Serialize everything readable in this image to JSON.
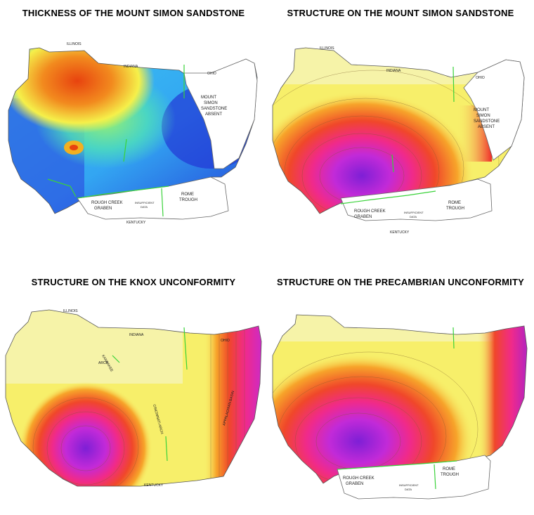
{
  "panels": [
    {
      "title": "THICKNESS OF THE MOUNT SIMON SANDSTONE",
      "labels": {
        "illinois": "ILLINOIS",
        "indiana": "INDIANA",
        "ohio": "OHIO",
        "kentucky": "KENTUCKY",
        "absent_1": "MOUNT",
        "absent_2": "SIMON",
        "absent_3": "SANDSTONE",
        "absent_4": "ABSENT",
        "rough_1": "ROUGH CREEK",
        "rough_2": "GRABEN",
        "rome_1": "ROME",
        "rome_2": "TROUGH",
        "insuff_1": "INSUFFICIENT",
        "insuff_2": "DATA"
      },
      "colors": {
        "high": "#e8430f",
        "mid": "#f5f04a",
        "low": "#2238d6"
      }
    },
    {
      "title": "STRUCTURE ON THE MOUNT SIMON SANDSTONE",
      "labels": {
        "illinois": "ILLINOIS",
        "indiana": "INDIANA",
        "ohio": "OHIO",
        "kentucky": "KENTUCKY",
        "absent_1": "MOUNT",
        "absent_2": "SIMON",
        "absent_3": "SANDSTONE",
        "absent_4": "ABSENT",
        "rough_1": "ROUGH CREEK",
        "rough_2": "GRABEN",
        "rome_1": "ROME",
        "rome_2": "TROUGH",
        "insuff_1": "INSUFFICIENT",
        "insuff_2": "DATA"
      },
      "colors": {
        "shallow": "#f7ef6a",
        "mid": "#f0472a",
        "deep": "#8a1fd8"
      }
    },
    {
      "title": "STRUCTURE ON THE KNOX UNCONFORMITY",
      "labels": {
        "illinois": "ILLINOIS",
        "indiana": "INDIANA",
        "ohio": "OHIO",
        "kentucky": "KENTUCKY",
        "kankakee_1": "KANKAKEE",
        "kankakee_2": "ARCH",
        "cincinnati": "CINCINNATI ARCH",
        "appalachian": "APPALACHIAN BASIN"
      },
      "colors": {
        "shallow": "#f7ef6a",
        "mid": "#f0472a",
        "deep": "#8a1fd8"
      }
    },
    {
      "title": "STRUCTURE ON THE PRECAMBRIAN UNCONFORMITY",
      "labels": {
        "rough_1": "ROUGH CREEK",
        "rough_2": "GRABEN",
        "rome_1": "ROME",
        "rome_2": "TROUGH",
        "insuff_1": "INSUFFICIENT",
        "insuff_2": "DATA"
      },
      "colors": {
        "shallow": "#f7ef6a",
        "mid": "#f0472a",
        "deep": "#8a1fd8"
      }
    }
  ]
}
